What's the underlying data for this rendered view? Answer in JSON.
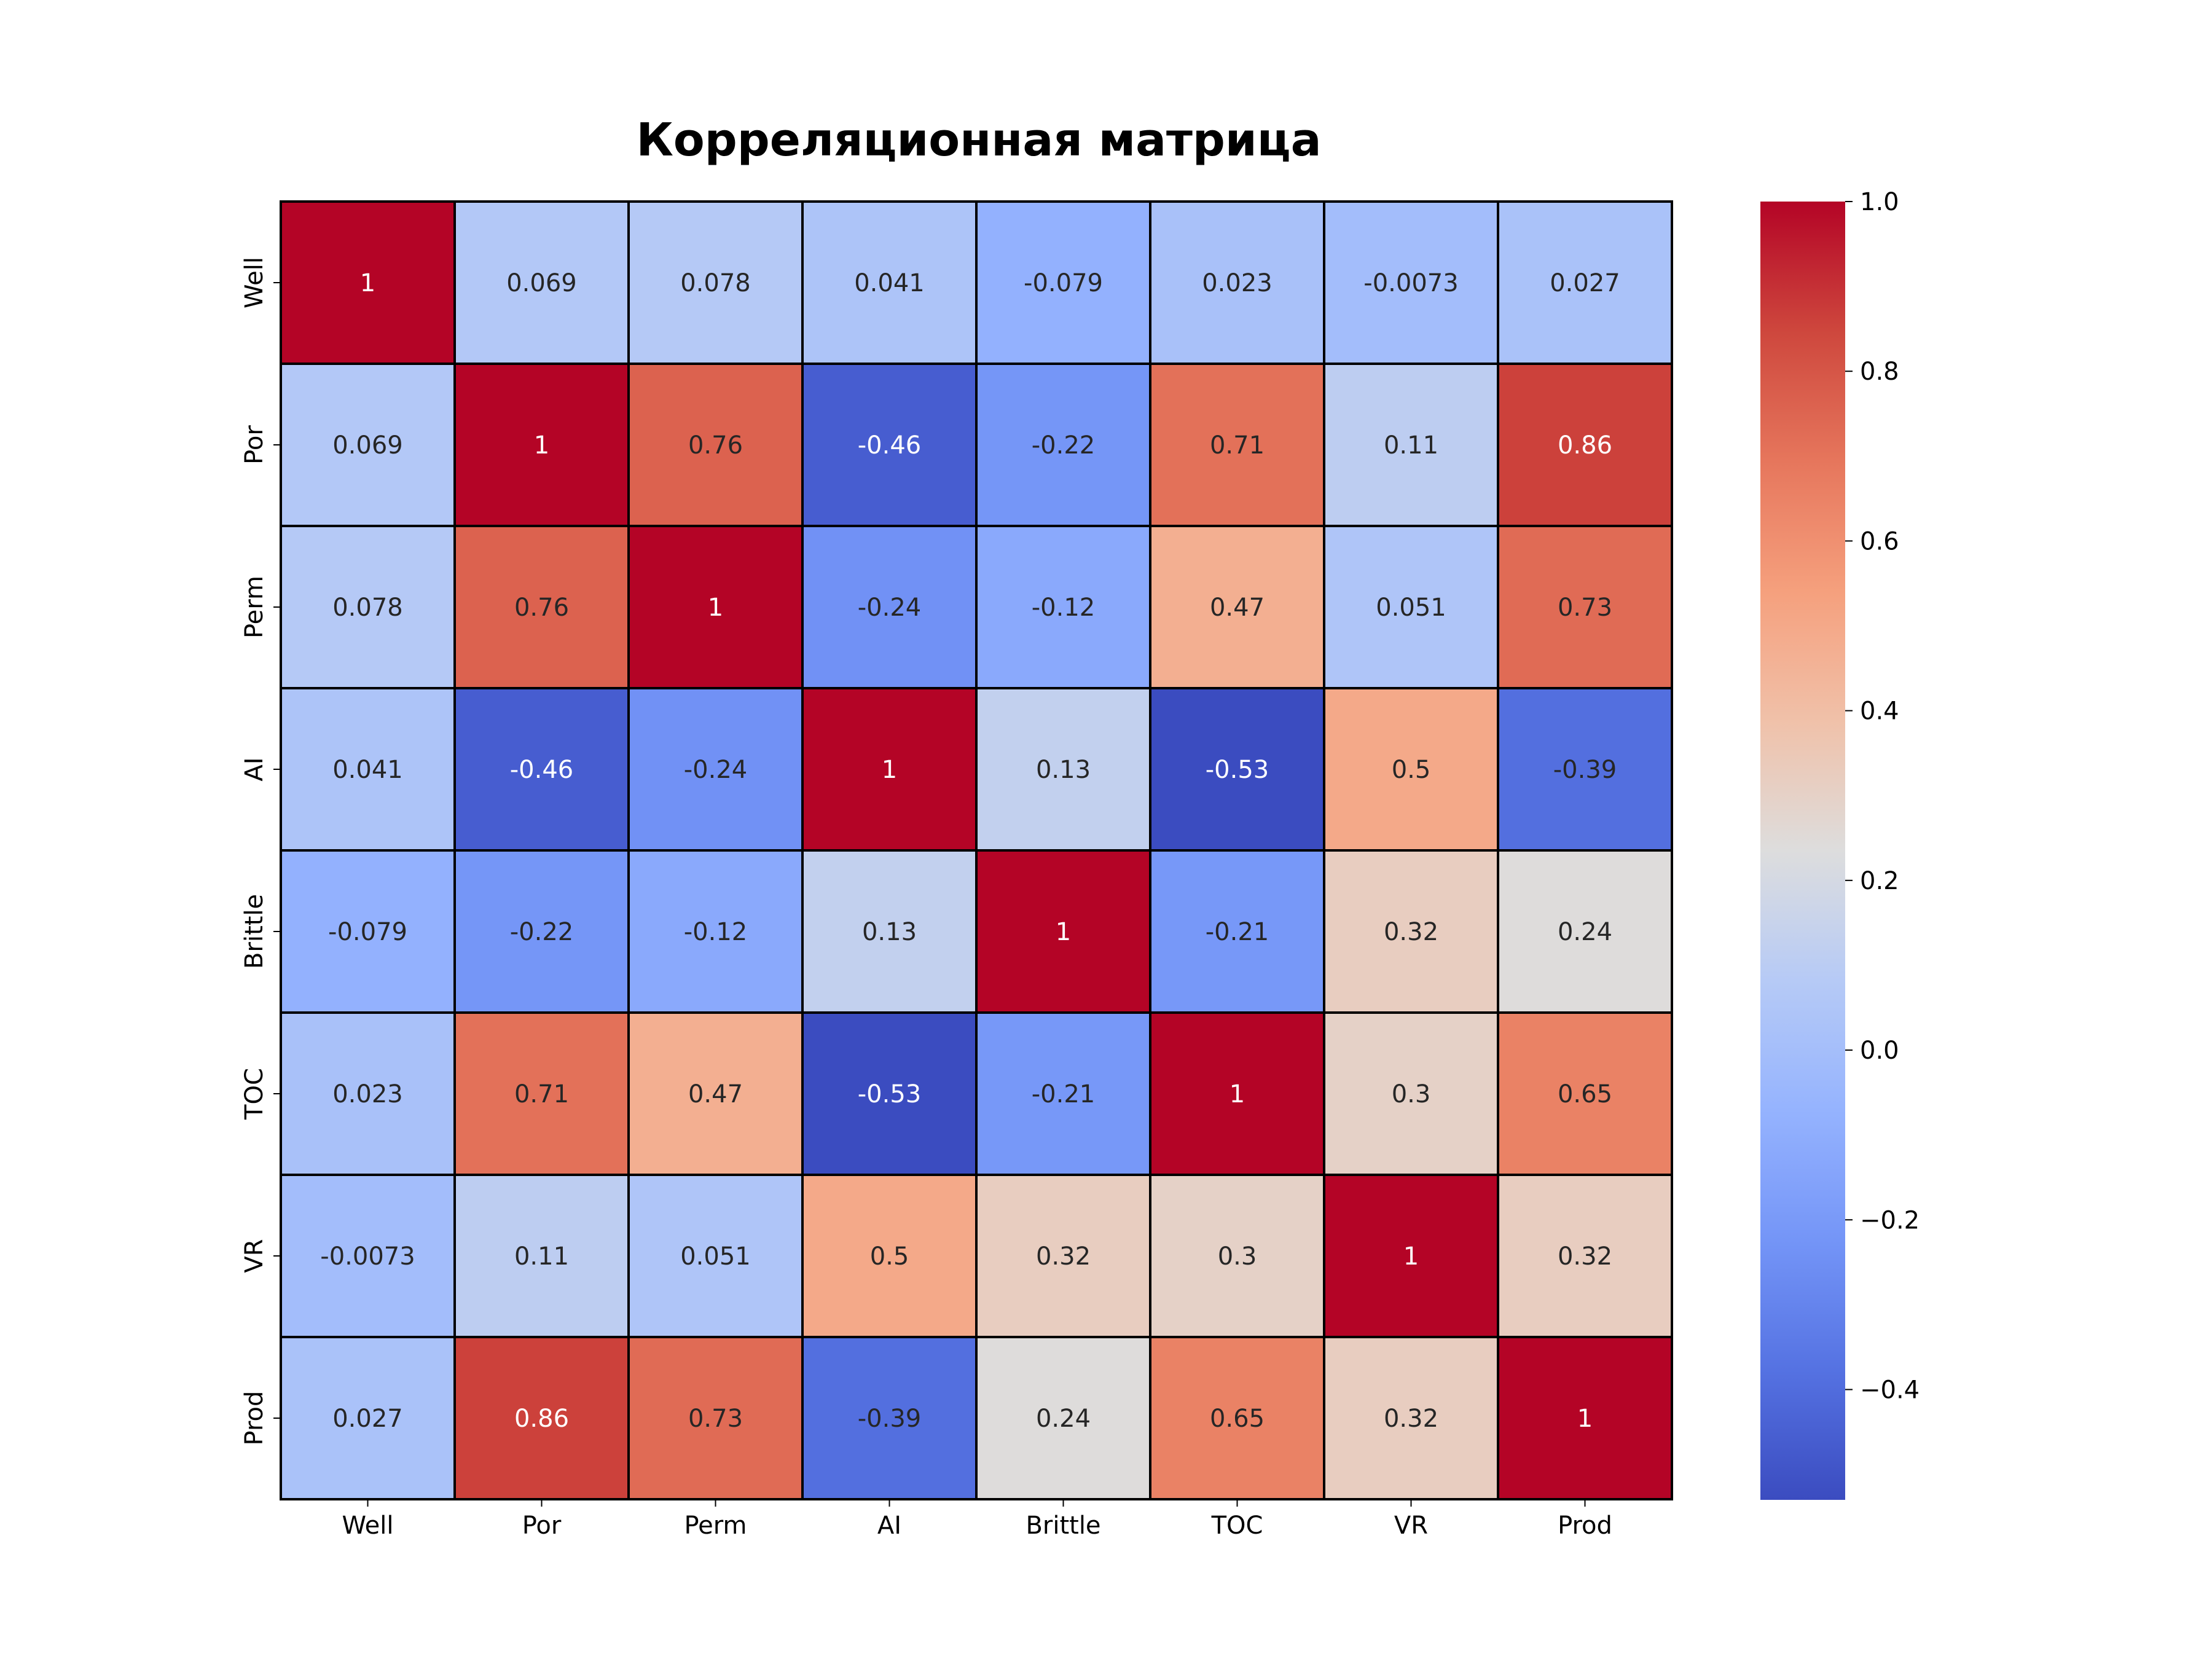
{
  "chart_data": {
    "type": "heatmap",
    "title": "Корреляционная матрица",
    "xlabel": "",
    "ylabel": "",
    "row_labels": [
      "Well",
      "Por",
      "Perm",
      "AI",
      "Brittle",
      "TOC",
      "VR",
      "Prod"
    ],
    "col_labels": [
      "Well",
      "Por",
      "Perm",
      "AI",
      "Brittle",
      "TOC",
      "VR",
      "Prod"
    ],
    "values": [
      [
        1,
        0.069,
        0.078,
        0.041,
        -0.079,
        0.023,
        -0.0073,
        0.027
      ],
      [
        0.069,
        1,
        0.76,
        -0.46,
        -0.22,
        0.71,
        0.11,
        0.86
      ],
      [
        0.078,
        0.76,
        1,
        -0.24,
        -0.12,
        0.47,
        0.051,
        0.73
      ],
      [
        0.041,
        -0.46,
        -0.24,
        1,
        0.13,
        -0.53,
        0.5,
        -0.39
      ],
      [
        -0.079,
        -0.22,
        -0.12,
        0.13,
        1,
        -0.21,
        0.32,
        0.24
      ],
      [
        0.023,
        0.71,
        0.47,
        -0.53,
        -0.21,
        1,
        0.3,
        0.65
      ],
      [
        -0.0073,
        0.11,
        0.051,
        0.5,
        0.32,
        0.3,
        1,
        0.32
      ],
      [
        0.027,
        0.86,
        0.73,
        -0.39,
        0.24,
        0.65,
        0.32,
        1
      ]
    ],
    "value_labels": [
      [
        "1",
        "0.069",
        "0.078",
        "0.041",
        "-0.079",
        "0.023",
        "-0.0073",
        "0.027"
      ],
      [
        "0.069",
        "1",
        "0.76",
        "-0.46",
        "-0.22",
        "0.71",
        "0.11",
        "0.86"
      ],
      [
        "0.078",
        "0.76",
        "1",
        "-0.24",
        "-0.12",
        "0.47",
        "0.051",
        "0.73"
      ],
      [
        "0.041",
        "-0.46",
        "-0.24",
        "1",
        "0.13",
        "-0.53",
        "0.5",
        "-0.39"
      ],
      [
        "-0.079",
        "-0.22",
        "-0.12",
        "0.13",
        "1",
        "-0.21",
        "0.32",
        "0.24"
      ],
      [
        "0.023",
        "0.71",
        "0.47",
        "-0.53",
        "-0.21",
        "1",
        "0.3",
        "0.65"
      ],
      [
        "-0.0073",
        "0.11",
        "0.051",
        "0.5",
        "0.32",
        "0.3",
        "1",
        "0.32"
      ],
      [
        "0.027",
        "0.86",
        "0.73",
        "-0.39",
        "0.24",
        "0.65",
        "0.32",
        "1"
      ]
    ],
    "colormap": "coolwarm",
    "colorbar": {
      "vmin": -0.53,
      "vmax": 1.0,
      "ticks": [
        1.0,
        0.8,
        0.6,
        0.4,
        0.2,
        0.0,
        -0.2,
        -0.4
      ],
      "tick_labels": [
        "1.0",
        "0.8",
        "0.6",
        "0.4",
        "0.2",
        "0.0",
        "−0.2",
        "−0.4"
      ]
    },
    "grid": true,
    "cell_border_color": "#000000",
    "legend": "colorbar-right"
  }
}
